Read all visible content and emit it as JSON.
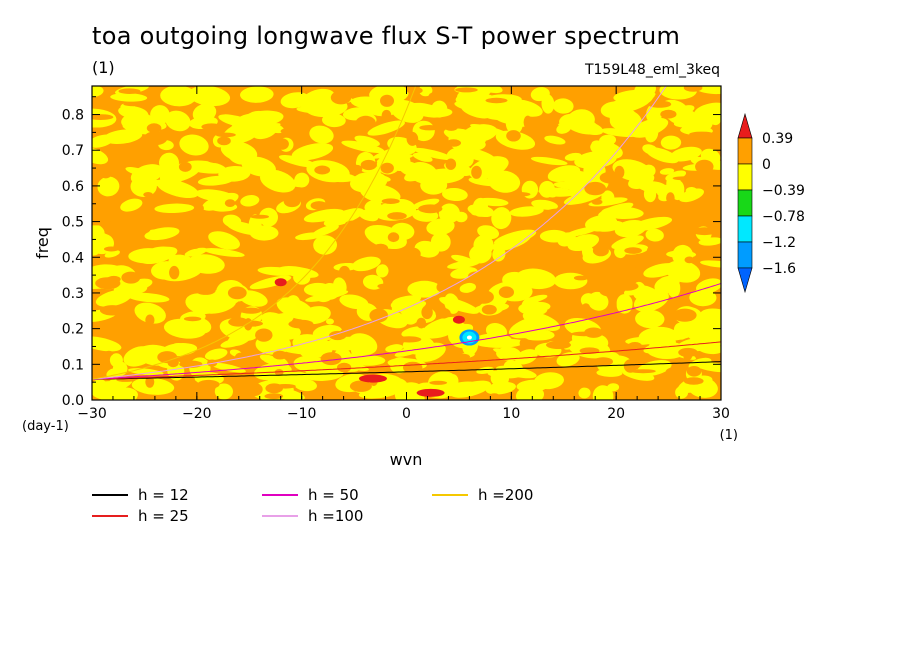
{
  "title": "toa outgoing longwave flux S-T power spectrum",
  "units_label": "(1)",
  "experiment": "T159L48_eml_3keq",
  "chart_data": {
    "type": "heatmap",
    "xlabel": "wvn",
    "ylabel": "freq",
    "x_unit": "(1)",
    "y_unit": "(day-1)",
    "xlim": [
      -30,
      30
    ],
    "ylim": [
      0,
      0.88
    ],
    "x_ticks": [
      -30,
      -20,
      -10,
      0,
      10,
      20,
      30
    ],
    "y_ticks": [
      0.0,
      0.1,
      0.2,
      0.3,
      0.4,
      0.5,
      0.6,
      0.7,
      0.8
    ],
    "y_tick_labels": [
      "0.0",
      "0.1",
      "0.2",
      "0.3",
      "0.4",
      "0.5",
      "0.6",
      "0.7",
      "0.8"
    ],
    "x_tick_labels": [
      "−30",
      "−20",
      "−10",
      "0",
      "10",
      "20",
      "30"
    ],
    "colorbar": {
      "labels": [
        "0.39",
        "0",
        "−0.39",
        "−0.78",
        "−1.2",
        "−1.6"
      ],
      "colors": [
        "#e81c1c",
        "#ffa000",
        "#ffff00",
        "#18d818",
        "#00e8ff",
        "#009cff",
        "#0064ff"
      ]
    },
    "dispersion_curves": [
      {
        "name": "h = 12",
        "h": 12,
        "color": "#000000"
      },
      {
        "name": "h = 25",
        "h": 25,
        "color": "#e61e1e"
      },
      {
        "name": "h = 50",
        "h": 50,
        "color": "#e000c0"
      },
      {
        "name": "h =100",
        "h": 100,
        "color": "#e8a0e8"
      },
      {
        "name": "h =200",
        "h": 200,
        "color": "#f5c800"
      }
    ],
    "negative_patches": [
      {
        "wvn": -12,
        "freq": 0.33,
        "level": "0.39"
      },
      {
        "wvn": -9.8,
        "freq": 0.24,
        "level": "−0.39"
      },
      {
        "wvn": -7.3,
        "freq": 0.22,
        "level": "−0.39"
      },
      {
        "wvn": 5,
        "freq": 0.225,
        "level": "0.39"
      },
      {
        "wvn": 6,
        "freq": 0.175,
        "level": "−1.2"
      },
      {
        "wvn": -3.2,
        "freq": 0.06,
        "level": "0.39"
      },
      {
        "wvn": 2.3,
        "freq": 0.02,
        "level": "0.39"
      }
    ]
  }
}
